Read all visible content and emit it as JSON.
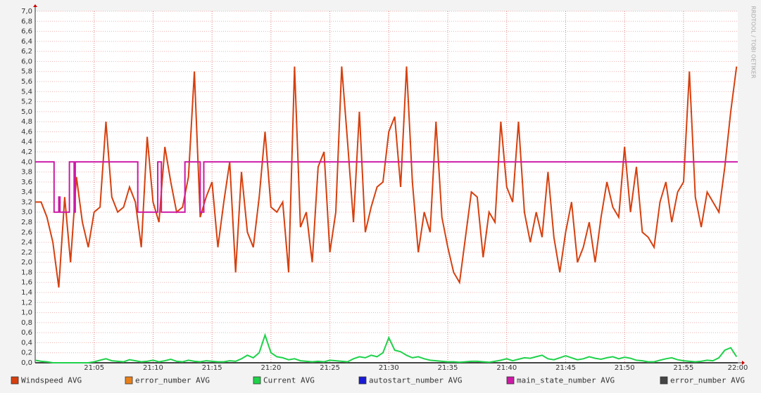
{
  "chart_data": {
    "type": "line",
    "watermark": "RRDTOOL / TOBI OETIKER",
    "xlim": [
      0,
      59.6
    ],
    "ylim": [
      0,
      7
    ],
    "xticks": [
      {
        "value": 5,
        "label": "21:05"
      },
      {
        "value": 10,
        "label": "21:10"
      },
      {
        "value": 15,
        "label": "21:15"
      },
      {
        "value": 20,
        "label": "21:20"
      },
      {
        "value": 25,
        "label": "21:25"
      },
      {
        "value": 30,
        "label": "21:30"
      },
      {
        "value": 35,
        "label": "21:35"
      },
      {
        "value": 40,
        "label": "21:40"
      },
      {
        "value": 45,
        "label": "21:45"
      },
      {
        "value": 50,
        "label": "21:50"
      },
      {
        "value": 55,
        "label": "21:55"
      },
      {
        "value": 60,
        "label": "22:00"
      }
    ],
    "yticks": [
      {
        "value": 0,
        "label": "0,0"
      },
      {
        "value": 0.2,
        "label": "0,2"
      },
      {
        "value": 0.4,
        "label": "0,4"
      },
      {
        "value": 0.6,
        "label": "0,6"
      },
      {
        "value": 0.8,
        "label": "0,8"
      },
      {
        "value": 1,
        "label": "1,0"
      },
      {
        "value": 1.2,
        "label": "1,2"
      },
      {
        "value": 1.4,
        "label": "1,4"
      },
      {
        "value": 1.6,
        "label": "1,6"
      },
      {
        "value": 1.8,
        "label": "1,8"
      },
      {
        "value": 2,
        "label": "2,0"
      },
      {
        "value": 2.2,
        "label": "2,2"
      },
      {
        "value": 2.4,
        "label": "2,4"
      },
      {
        "value": 2.6,
        "label": "2,6"
      },
      {
        "value": 2.8,
        "label": "2,8"
      },
      {
        "value": 3,
        "label": "3,0"
      },
      {
        "value": 3.2,
        "label": "3,2"
      },
      {
        "value": 3.4,
        "label": "3,4"
      },
      {
        "value": 3.6,
        "label": "3,6"
      },
      {
        "value": 3.8,
        "label": "3,8"
      },
      {
        "value": 4,
        "label": "4,0"
      },
      {
        "value": 4.2,
        "label": "4,2"
      },
      {
        "value": 4.4,
        "label": "4,4"
      },
      {
        "value": 4.6,
        "label": "4,6"
      },
      {
        "value": 4.8,
        "label": "4,8"
      },
      {
        "value": 5,
        "label": "5,0"
      },
      {
        "value": 5.2,
        "label": "5,2"
      },
      {
        "value": 5.4,
        "label": "5,4"
      },
      {
        "value": 5.6,
        "label": "5,6"
      },
      {
        "value": 5.8,
        "label": "5,8"
      },
      {
        "value": 6,
        "label": "6,0"
      },
      {
        "value": 6.2,
        "label": "6,2"
      },
      {
        "value": 6.4,
        "label": "6,4"
      },
      {
        "value": 6.6,
        "label": "6,6"
      },
      {
        "value": 6.8,
        "label": "6,8"
      },
      {
        "value": 7,
        "label": "7,0"
      }
    ],
    "grid": true,
    "x": [
      0,
      0.5,
      1,
      1.5,
      2,
      2.5,
      3,
      3.5,
      4,
      4.5,
      5,
      5.5,
      6,
      6.5,
      7,
      7.5,
      8,
      8.5,
      9,
      9.5,
      10,
      10.5,
      11,
      11.5,
      12,
      12.5,
      13,
      13.5,
      14,
      14.5,
      15,
      15.5,
      16,
      16.5,
      17,
      17.5,
      18,
      18.5,
      19,
      19.5,
      20,
      20.5,
      21,
      21.5,
      22,
      22.5,
      23,
      23.5,
      24,
      24.5,
      25,
      25.5,
      26,
      26.5,
      27,
      27.5,
      28,
      28.5,
      29,
      29.5,
      30,
      30.5,
      31,
      31.5,
      32,
      32.5,
      33,
      33.5,
      34,
      34.5,
      35,
      35.5,
      36,
      36.5,
      37,
      37.5,
      38,
      38.5,
      39,
      39.5,
      40,
      40.5,
      41,
      41.5,
      42,
      42.5,
      43,
      43.5,
      44,
      44.5,
      45,
      45.5,
      46,
      46.5,
      47,
      47.5,
      48,
      48.5,
      49,
      49.5,
      50,
      50.5,
      51,
      51.5,
      52,
      52.5,
      53,
      53.5,
      54,
      54.5,
      55,
      55.5,
      56,
      56.5,
      57,
      57.5,
      58,
      58.5,
      59,
      59.5
    ],
    "series": [
      {
        "name": "Windspeed AVG",
        "color": "#d6400f",
        "values": [
          3.2,
          3.2,
          2.9,
          2.4,
          1.5,
          3.3,
          2.0,
          3.7,
          2.8,
          2.3,
          3.0,
          3.1,
          4.8,
          3.3,
          3.0,
          3.1,
          3.5,
          3.2,
          2.3,
          4.5,
          3.2,
          2.8,
          4.3,
          3.6,
          3.0,
          3.1,
          3.7,
          5.8,
          2.9,
          3.3,
          3.6,
          2.3,
          3.2,
          4.0,
          1.8,
          3.8,
          2.6,
          2.3,
          3.3,
          4.6,
          3.1,
          3.0,
          3.2,
          1.8,
          5.9,
          2.7,
          3.0,
          2.0,
          3.9,
          4.2,
          2.2,
          3.0,
          5.9,
          4.4,
          2.8,
          5.0,
          2.6,
          3.1,
          3.5,
          3.6,
          4.6,
          4.9,
          3.5,
          5.9,
          3.6,
          2.2,
          3.0,
          2.6,
          4.8,
          2.9,
          2.3,
          1.8,
          1.6,
          2.5,
          3.4,
          3.3,
          2.1,
          3.0,
          2.8,
          4.8,
          3.5,
          3.2,
          4.8,
          3.0,
          2.4,
          3.0,
          2.5,
          3.8,
          2.5,
          1.8,
          2.6,
          3.2,
          2.0,
          2.3,
          2.8,
          2.0,
          2.9,
          3.6,
          3.1,
          2.9,
          4.3,
          3.0,
          3.9,
          2.6,
          2.5,
          2.3,
          3.2,
          3.6,
          2.8,
          3.4,
          3.6,
          5.8,
          3.3,
          2.7,
          3.4,
          3.2,
          3.0,
          3.9,
          5.0,
          5.9
        ]
      },
      {
        "name": "error_number AVG",
        "color": "#e8801a",
        "x": [
          0,
          59.6
        ],
        "values": [
          0,
          0
        ]
      },
      {
        "name": "Current AVG",
        "color": "#1fd24a",
        "values": [
          0.05,
          0.03,
          0.02,
          0,
          0,
          0,
          0,
          0,
          0,
          0,
          0.02,
          0.05,
          0.08,
          0.04,
          0.03,
          0.02,
          0.06,
          0.04,
          0.02,
          0.03,
          0.05,
          0.02,
          0.04,
          0.07,
          0.03,
          0.02,
          0.05,
          0.03,
          0.02,
          0.04,
          0.03,
          0.02,
          0.02,
          0.04,
          0.03,
          0.08,
          0.15,
          0.1,
          0.2,
          0.55,
          0.2,
          0.12,
          0.1,
          0.06,
          0.08,
          0.04,
          0.03,
          0.02,
          0.03,
          0.02,
          0.05,
          0.04,
          0.03,
          0.02,
          0.08,
          0.12,
          0.1,
          0.15,
          0.12,
          0.2,
          0.5,
          0.25,
          0.22,
          0.15,
          0.1,
          0.12,
          0.08,
          0.05,
          0.04,
          0.03,
          0.02,
          0.02,
          0.01,
          0.02,
          0.03,
          0.03,
          0.02,
          0.01,
          0.03,
          0.05,
          0.08,
          0.04,
          0.07,
          0.1,
          0.09,
          0.12,
          0.15,
          0.08,
          0.06,
          0.1,
          0.14,
          0.1,
          0.06,
          0.08,
          0.12,
          0.09,
          0.07,
          0.1,
          0.12,
          0.08,
          0.11,
          0.09,
          0.05,
          0.04,
          0.02,
          0.02,
          0.05,
          0.08,
          0.1,
          0.06,
          0.04,
          0.03,
          0.02,
          0.03,
          0.05,
          0.04,
          0.1,
          0.25,
          0.3,
          0.12
        ]
      },
      {
        "name": "autostart_number AVG",
        "color": "#1a1ad6",
        "x": [
          0,
          59.6
        ],
        "values": [
          0,
          0
        ]
      },
      {
        "name": "main_state_number AVG",
        "color": "#cc19a6",
        "x": [
          0,
          1.6,
          1.6,
          2.0,
          2.0,
          2.1,
          2.1,
          2.9,
          2.9,
          3.3,
          3.3,
          3.4,
          3.4,
          8.7,
          8.7,
          10.4,
          10.4,
          10.7,
          10.7,
          12.7,
          12.7,
          14.0,
          14.0,
          14.3,
          14.3,
          59.6
        ],
        "values": [
          4,
          4,
          3,
          3,
          3.3,
          3.3,
          3,
          3,
          4,
          4,
          3,
          3,
          4,
          4,
          3,
          3,
          4,
          4,
          3,
          3,
          4,
          4,
          3,
          3,
          4,
          4
        ]
      },
      {
        "name": "error_number AVG",
        "color": "#444444",
        "x": [
          0,
          59.6
        ],
        "values": [
          0,
          0
        ]
      }
    ]
  }
}
